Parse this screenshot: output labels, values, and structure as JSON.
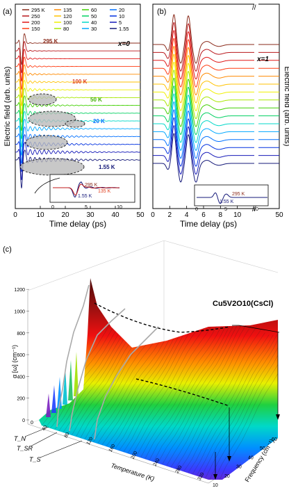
{
  "panel_a": {
    "label": "(a)",
    "ylabel": "Electric field (arb. units)",
    "xlabel": "Time delay (ps)",
    "xticks": [
      "0",
      "10",
      "20",
      "30",
      "40",
      "50"
    ],
    "annotation": "x=0",
    "legend": [
      "295 K",
      "250",
      "200",
      "150",
      "135",
      "120",
      "100",
      "80",
      "60",
      "50",
      "40",
      "30",
      "20",
      "10",
      "5",
      "1.55"
    ],
    "curve_labels": [
      "295 K",
      "100 K",
      "50 K",
      "20 K",
      "1.55 K"
    ],
    "inset": {
      "labels": [
        "295 K",
        "135 K",
        "1.55 K"
      ],
      "xticks": [
        "0",
        "5",
        "10"
      ]
    }
  },
  "panel_b": {
    "label": "(b)",
    "ylabel": "Electric field (arb. units)",
    "xlabel": "Time delay (ps)",
    "xticks": [
      "0",
      "2",
      "4",
      "6",
      "8",
      "10",
      "50"
    ],
    "annotation": "x=1",
    "inset": {
      "labels": [
        "295 K",
        "1.55 K"
      ],
      "xticks": [
        "0",
        "5",
        "10"
      ]
    }
  },
  "panel_c": {
    "label": "(c)",
    "title": "Cu5V2O10(CsCl)",
    "zlabel": "α [ω] (cm⁻¹)",
    "zticks": [
      "0",
      "200",
      "400",
      "600",
      "800",
      "1000",
      "1200"
    ],
    "temp_label": "Temperature (K)",
    "temp_ticks": [
      "40",
      "80",
      "120",
      "160",
      "200",
      "240",
      "280",
      "320"
    ],
    "freq_label": "Frequency (cm⁻¹)",
    "freq_ticks": [
      "10",
      "20",
      "30",
      "40",
      "50",
      "60"
    ],
    "markers": [
      "T_N",
      "T_SR",
      "T_S"
    ]
  },
  "colors": [
    "#8a2a1a",
    "#b8151a",
    "#e01515",
    "#ff3a10",
    "#ff8a00",
    "#ffc200",
    "#f0f000",
    "#a8e800",
    "#40d000",
    "#00d060",
    "#00d8c8",
    "#00a8ff",
    "#0070ff",
    "#0030e0",
    "#1418b8",
    "#141878"
  ],
  "chart_data": [
    {
      "type": "line",
      "title": "",
      "xlabel": "Time delay (ps)",
      "ylabel": "Electric field (arb. units)",
      "xlim": [
        0,
        50
      ],
      "series": [
        {
          "name": "295 K"
        },
        {
          "name": "250"
        },
        {
          "name": "200"
        },
        {
          "name": "150"
        },
        {
          "name": "135"
        },
        {
          "name": "120"
        },
        {
          "name": "100"
        },
        {
          "name": "80"
        },
        {
          "name": "60"
        },
        {
          "name": "50"
        },
        {
          "name": "40"
        },
        {
          "name": "30"
        },
        {
          "name": "20"
        },
        {
          "name": "10"
        },
        {
          "name": "5"
        },
        {
          "name": "1.55"
        }
      ],
      "main_pulse_time_ps": 2.5
    },
    {
      "type": "line",
      "title": "",
      "xlabel": "Time delay (ps)",
      "ylabel": "Electric field (arb. units)",
      "xlim": [
        0,
        50
      ],
      "xticks": [
        0,
        2,
        4,
        6,
        8,
        10,
        50
      ],
      "peak_times_ps": [
        2.5,
        4.2
      ]
    },
    {
      "type": "heatmap",
      "title": "Cu5V2O10(CsCl)",
      "zlabel": "α [ω] (cm⁻¹)",
      "zlim": [
        0,
        1200
      ],
      "temperature_range_K": [
        0,
        320
      ],
      "frequency_range_cm": [
        10,
        60
      ]
    }
  ]
}
